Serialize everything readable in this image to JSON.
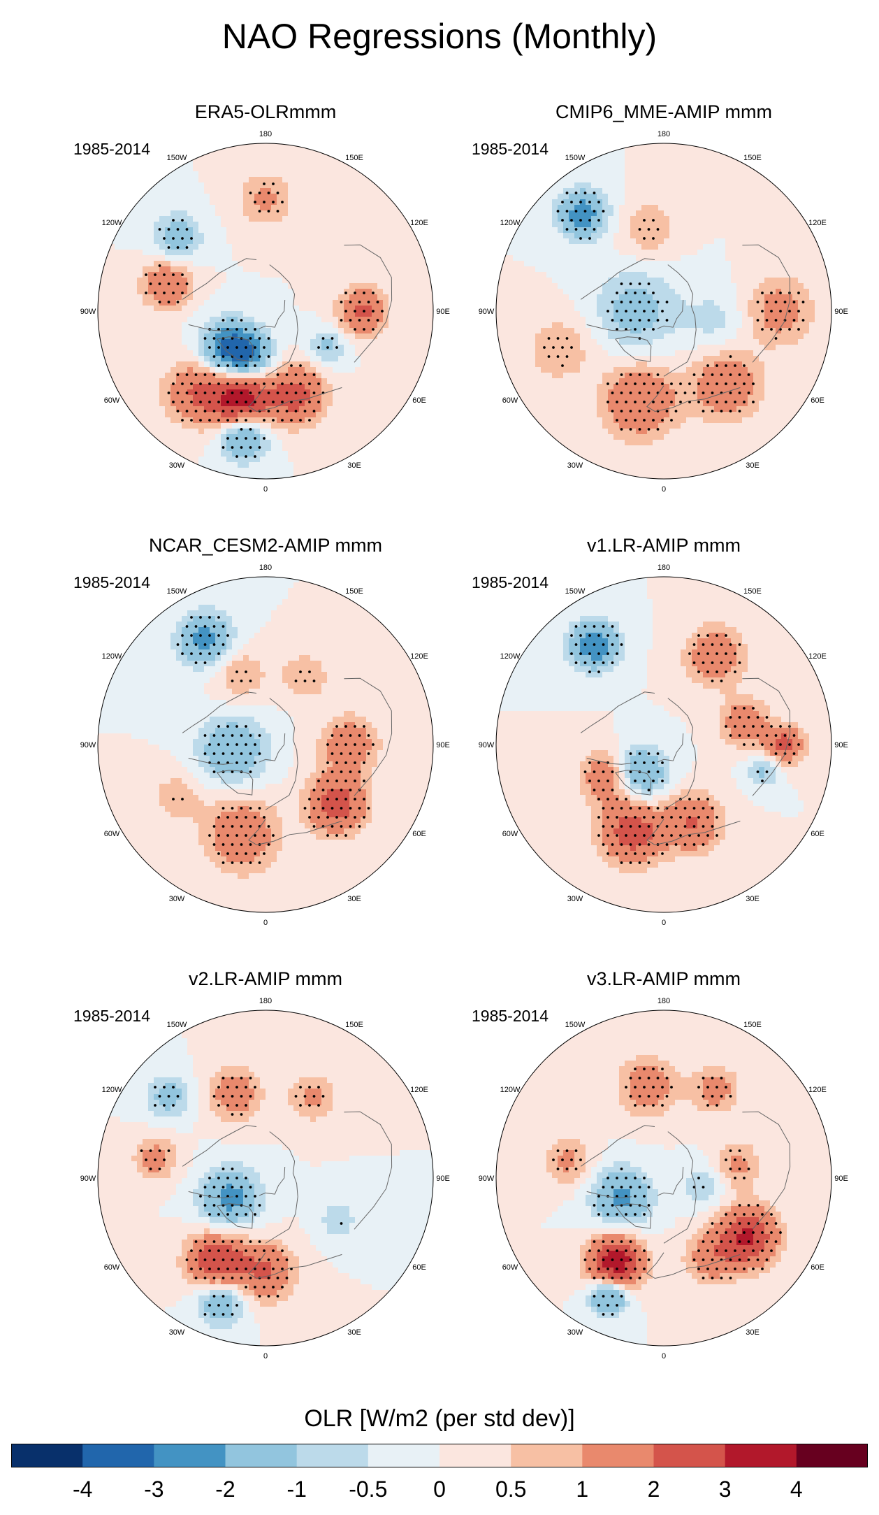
{
  "title": "NAO Regressions (Monthly)",
  "chart_data": {
    "type": "heatmap",
    "projection": "north-polar-stereographic",
    "stippling": "significant regions",
    "longitude_labels": [
      "180",
      "150E",
      "120E",
      "90E",
      "60E",
      "30E",
      "0",
      "30W",
      "60W",
      "90W",
      "120W",
      "150W"
    ],
    "panels": [
      {
        "title": "ERA5-OLRmmm",
        "period": "1985-2014",
        "features": [
          {
            "lon": 345,
            "lat": 40,
            "value": 3.6,
            "spread": 11
          },
          {
            "lon": 20,
            "lat": 42,
            "value": 2.4,
            "spread": 11
          },
          {
            "lon": 320,
            "lat": 33,
            "value": 2.0,
            "spread": 12
          },
          {
            "lon": 315,
            "lat": 62,
            "value": -3.0,
            "spread": 10
          },
          {
            "lon": 340,
            "lat": 65,
            "value": -2.0,
            "spread": 9
          },
          {
            "lon": 350,
            "lat": 22,
            "value": -2.6,
            "spread": 9
          },
          {
            "lon": 90,
            "lat": 38,
            "value": 2.2,
            "spread": 9
          },
          {
            "lon": 255,
            "lat": 35,
            "value": 2.0,
            "spread": 9
          },
          {
            "lon": 230,
            "lat": 28,
            "value": -1.5,
            "spread": 9
          },
          {
            "lon": 180,
            "lat": 30,
            "value": 1.2,
            "spread": 10
          },
          {
            "lon": 60,
            "lat": 52,
            "value": -1.2,
            "spread": 7
          }
        ]
      },
      {
        "title": "CMIP6_MME-AMIP  mmm",
        "period": "1985-2014",
        "features": [
          {
            "lon": 345,
            "lat": 40,
            "value": 2.0,
            "spread": 14
          },
          {
            "lon": 40,
            "lat": 38,
            "value": 1.8,
            "spread": 13
          },
          {
            "lon": 90,
            "lat": 28,
            "value": 1.4,
            "spread": 13
          },
          {
            "lon": 290,
            "lat": 30,
            "value": 1.0,
            "spread": 12
          },
          {
            "lon": 270,
            "lat": 75,
            "value": -1.4,
            "spread": 15
          },
          {
            "lon": 220,
            "lat": 22,
            "value": -2.6,
            "spread": 9
          },
          {
            "lon": 190,
            "lat": 45,
            "value": 1.0,
            "spread": 10
          },
          {
            "lon": 80,
            "lat": 62,
            "value": -0.7,
            "spread": 12
          }
        ]
      },
      {
        "title": "NCAR_CESM2-AMIP  mmm",
        "period": "1985-2014",
        "features": [
          {
            "lon": 345,
            "lat": 40,
            "value": 1.8,
            "spread": 14
          },
          {
            "lon": 50,
            "lat": 40,
            "value": 2.6,
            "spread": 11
          },
          {
            "lon": 90,
            "lat": 45,
            "value": 1.6,
            "spread": 11
          },
          {
            "lon": 280,
            "lat": 72,
            "value": -1.8,
            "spread": 13
          },
          {
            "lon": 210,
            "lat": 25,
            "value": -2.4,
            "spread": 10
          },
          {
            "lon": 200,
            "lat": 50,
            "value": 1.0,
            "spread": 10
          },
          {
            "lon": 150,
            "lat": 48,
            "value": 1.0,
            "spread": 9
          },
          {
            "lon": 300,
            "lat": 35,
            "value": 0.8,
            "spread": 10
          }
        ]
      },
      {
        "title": "v1.LR-AMIP  mmm",
        "period": "1985-2014",
        "features": [
          {
            "lon": 340,
            "lat": 40,
            "value": 2.6,
            "spread": 12
          },
          {
            "lon": 20,
            "lat": 45,
            "value": 2.0,
            "spread": 11
          },
          {
            "lon": 300,
            "lat": 55,
            "value": 1.8,
            "spread": 10
          },
          {
            "lon": 320,
            "lat": 70,
            "value": -2.2,
            "spread": 10
          },
          {
            "lon": 215,
            "lat": 25,
            "value": -2.8,
            "spread": 9
          },
          {
            "lon": 150,
            "lat": 35,
            "value": 1.8,
            "spread": 11
          },
          {
            "lon": 105,
            "lat": 45,
            "value": 1.8,
            "spread": 9
          },
          {
            "lon": 90,
            "lat": 25,
            "value": 2.4,
            "spread": 7
          },
          {
            "lon": 75,
            "lat": 35,
            "value": -1.2,
            "spread": 6
          }
        ]
      },
      {
        "title": "v2.LR-AMIP  mmm",
        "period": "1985-2014",
        "features": [
          {
            "lon": 330,
            "lat": 38,
            "value": 3.0,
            "spread": 11
          },
          {
            "lon": 0,
            "lat": 40,
            "value": 2.0,
            "spread": 11
          },
          {
            "lon": 300,
            "lat": 68,
            "value": -2.4,
            "spread": 11
          },
          {
            "lon": 340,
            "lat": 20,
            "value": -2.0,
            "spread": 9
          },
          {
            "lon": 200,
            "lat": 42,
            "value": 1.6,
            "spread": 10
          },
          {
            "lon": 150,
            "lat": 40,
            "value": 1.2,
            "spread": 9
          },
          {
            "lon": 260,
            "lat": 30,
            "value": 1.4,
            "spread": 8
          },
          {
            "lon": 60,
            "lat": 45,
            "value": -0.8,
            "spread": 8
          },
          {
            "lon": 230,
            "lat": 22,
            "value": -1.4,
            "spread": 8
          }
        ]
      },
      {
        "title": "v3.LR-AMIP  mmm",
        "period": "1985-2014",
        "features": [
          {
            "lon": 330,
            "lat": 38,
            "value": 3.8,
            "spread": 10
          },
          {
            "lon": 55,
            "lat": 35,
            "value": 3.2,
            "spread": 11
          },
          {
            "lon": 30,
            "lat": 40,
            "value": 1.4,
            "spread": 10
          },
          {
            "lon": 295,
            "lat": 65,
            "value": -2.2,
            "spread": 11
          },
          {
            "lon": 335,
            "lat": 20,
            "value": -2.6,
            "spread": 7
          },
          {
            "lon": 190,
            "lat": 40,
            "value": 1.6,
            "spread": 11
          },
          {
            "lon": 150,
            "lat": 35,
            "value": 1.4,
            "spread": 9
          },
          {
            "lon": 100,
            "lat": 50,
            "value": 1.2,
            "spread": 9
          },
          {
            "lon": 260,
            "lat": 38,
            "value": 1.2,
            "spread": 9
          },
          {
            "lon": 80,
            "lat": 68,
            "value": -1.0,
            "spread": 8
          }
        ]
      }
    ],
    "colorbar": {
      "label": "OLR [W/m2 (per std dev)]",
      "tick_labels": [
        "-4",
        "-3",
        "-2",
        "-1",
        "-0.5",
        "0",
        "0.5",
        "1",
        "2",
        "3",
        "4"
      ],
      "levels": [
        -4,
        -3,
        -2,
        -1,
        -0.5,
        0,
        0.5,
        1,
        2,
        3,
        4
      ],
      "colors": [
        "#08306b",
        "#2166ac",
        "#4393c3",
        "#92c5de",
        "#bcdaea",
        "#e8f1f6",
        "#fbe6df",
        "#f7c0a4",
        "#e9896d",
        "#d4544b",
        "#b2182b",
        "#67001f"
      ]
    }
  }
}
